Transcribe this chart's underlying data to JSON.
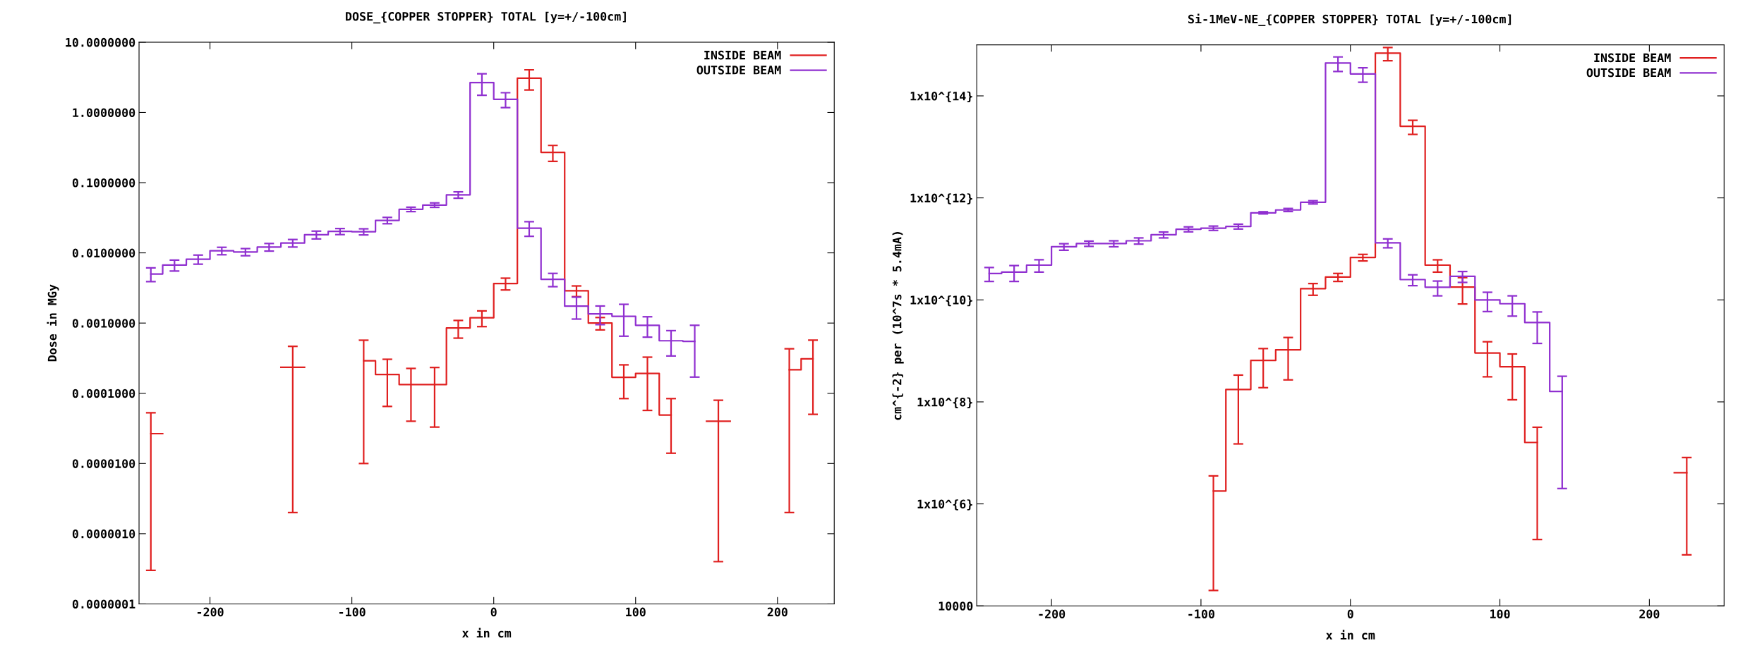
{
  "chart_data": [
    {
      "type": "step",
      "title": "DOSE_{COPPER STOPPER} TOTAL [y=+/-100cm]",
      "xlabel": "x in cm",
      "ylabel": "Dose in MGy",
      "log": "y",
      "legend": "top right",
      "grid": false,
      "x": [
        -241.67,
        -225,
        -208.33,
        -191.67,
        -175,
        -158.33,
        -141.67,
        -125,
        -108.33,
        -91.67,
        -75,
        -58.33,
        -41.67,
        -25,
        -8.33,
        8.33,
        25,
        41.67,
        58.33,
        75,
        91.67,
        108.33,
        125,
        141.67,
        158.33,
        175,
        191.67,
        208.33,
        225
      ],
      "xlim": [
        -250,
        240
      ],
      "xticks": [
        -200,
        -100,
        0,
        100,
        200
      ],
      "ylim": [
        1e-07,
        10
      ],
      "yticks": [
        {
          "value": 10,
          "label": "10.0000000"
        },
        {
          "value": 1,
          "label": "1.0000000"
        },
        {
          "value": 0.1,
          "label": "0.1000000"
        },
        {
          "value": 0.01,
          "label": "0.0100000"
        },
        {
          "value": 0.001,
          "label": "0.0010000"
        },
        {
          "value": 0.0001,
          "label": "0.0001000"
        },
        {
          "value": 1e-05,
          "label": "0.0000100"
        },
        {
          "value": 1e-06,
          "label": "0.0000010"
        },
        {
          "value": 1e-07,
          "label": "0.0000001"
        }
      ],
      "series": [
        {
          "name": "INSIDE BEAM",
          "color": "#e02020",
          "values": [
            2.66e-05,
            null,
            null,
            null,
            null,
            null,
            0.000234,
            null,
            null,
            0.00029,
            0.000185,
            0.000133,
            0.000133,
            0.00085,
            0.00119,
            0.00366,
            3.07,
            0.27,
            0.00288,
            0.001,
            0.000169,
            0.000192,
            4.9e-05,
            null,
            4e-05,
            null,
            null,
            0.000216,
            0.00031
          ],
          "errors": [
            2.63e-05,
            null,
            null,
            null,
            null,
            null,
            0.000232,
            null,
            null,
            0.00028,
            0.00012,
            9.3e-05,
            0.0001,
            0.00024,
            0.0003,
            0.0007,
            0.98,
            0.069,
            0.0005,
            0.0002,
            8.5e-05,
            0.000135,
            3.5e-05,
            null,
            3.96e-05,
            null,
            null,
            0.000214,
            0.00026
          ]
        },
        {
          "name": "OUTSIDE BEAM",
          "color": "#9030d0",
          "values": [
            0.005,
            0.0067,
            0.0081,
            0.0107,
            0.0103,
            0.0121,
            0.0138,
            0.0181,
            0.0202,
            0.02,
            0.029,
            0.0417,
            0.048,
            0.067,
            2.66,
            1.54,
            0.0225,
            0.0042,
            0.00174,
            0.00135,
            0.00125,
            0.00093,
            0.00056,
            0.00055,
            null,
            null,
            null,
            null,
            null
          ],
          "errors": [
            0.0011,
            0.0012,
            0.0012,
            0.0013,
            0.0012,
            0.0015,
            0.0017,
            0.0023,
            0.002,
            0.002,
            0.003,
            0.003,
            0.0035,
            0.007,
            0.9,
            0.37,
            0.0053,
            0.0009,
            0.0006,
            0.0004,
            0.0006,
            0.0003,
            0.00022,
            0.00038,
            null,
            null,
            null,
            null,
            null
          ]
        }
      ]
    },
    {
      "type": "step",
      "title": "Si-1MeV-NE_{COPPER STOPPER} TOTAL [y=+/-100cm]",
      "xlabel": "x in cm",
      "ylabel": "cm^{-2} per (10^7s * 5.4mA)",
      "log": "y",
      "legend": "top right",
      "grid": false,
      "x": [
        -241.67,
        -225,
        -208.33,
        -191.67,
        -175,
        -158.33,
        -141.67,
        -125,
        -108.33,
        -91.67,
        -75,
        -58.33,
        -41.67,
        -25,
        -8.33,
        8.33,
        25,
        41.67,
        58.33,
        75,
        91.67,
        108.33,
        125,
        141.67,
        158.33,
        175,
        191.67,
        208.33,
        225
      ],
      "xlim": [
        -250,
        250
      ],
      "xticks": [
        -200,
        -100,
        0,
        100,
        200
      ],
      "ylim": [
        10000,
        1000000000000000.0
      ],
      "yticks": [
        {
          "value": 100000000000000.0,
          "label": "1x10^{14}"
        },
        {
          "value": 1000000000000.0,
          "label": "1x10^{12}"
        },
        {
          "value": 10000000000.0,
          "label": "1x10^{10}"
        },
        {
          "value": 100000000.0,
          "label": "1x10^{8}"
        },
        {
          "value": 1000000.0,
          "label": "1x10^{6}"
        },
        10000
      ],
      "series": [
        {
          "name": "INSIDE BEAM",
          "color": "#e02020",
          "values": [
            null,
            null,
            null,
            null,
            null,
            null,
            null,
            null,
            null,
            1780000.0,
            175000000.0,
            650000000.0,
            1050000000.0,
            16600000000.0,
            28000000000.0,
            68000000000.0,
            690000000000000.0,
            25400000000000.0,
            48000000000.0,
            17800000000.0,
            910000000.0,
            490000000.0,
            16000000.0,
            null,
            null,
            null,
            null,
            null,
            4100000.0
          ],
          "errors": [
            null,
            null,
            null,
            null,
            null,
            null,
            null,
            null,
            null,
            1760000.0,
            160000000.0,
            460000000.0,
            780000000.0,
            4300000000.0,
            5000000000.0,
            10000000000.0,
            200000000000000.0,
            7800000000000.0,
            13000000000.0,
            9500000000.0,
            600000000.0,
            380000000.0,
            15800000.0,
            null,
            null,
            null,
            null,
            null,
            4000000.0
          ]
        },
        {
          "name": "OUTSIDE BEAM",
          "color": "#9030d0",
          "values": [
            33000000000.0,
            35000000000.0,
            48000000000.0,
            110000000000.0,
            127000000000.0,
            127000000000.0,
            144000000000.0,
            189000000000.0,
            243000000000.0,
            255000000000.0,
            275000000000.0,
            510000000000.0,
            580000000000.0,
            820000000000.0,
            440000000000000.0,
            270000000000000.0,
            131000000000.0,
            25000000000.0,
            17700000000.0,
            29000000000.0,
            10000000000.0,
            8400000000.0,
            3600000000.0,
            160000000.0,
            null,
            null,
            null,
            null,
            null
          ],
          "errors": [
            10000000000.0,
            12000000000.0,
            13000000000.0,
            16000000000.0,
            15000000000.0,
            17000000000.0,
            20000000000.0,
            25000000000.0,
            27000000000.0,
            25000000000.0,
            30000000000.0,
            25000000000.0,
            40000000000.0,
            60000000000.0,
            140000000000000.0,
            85000000000000.0,
            26000000000.0,
            6000000000.0,
            5700000000.0,
            7000000000.0,
            4100000000.0,
            3600000000.0,
            2200000000.0,
            158000000.0,
            null,
            null,
            null,
            null,
            null
          ]
        }
      ]
    }
  ]
}
